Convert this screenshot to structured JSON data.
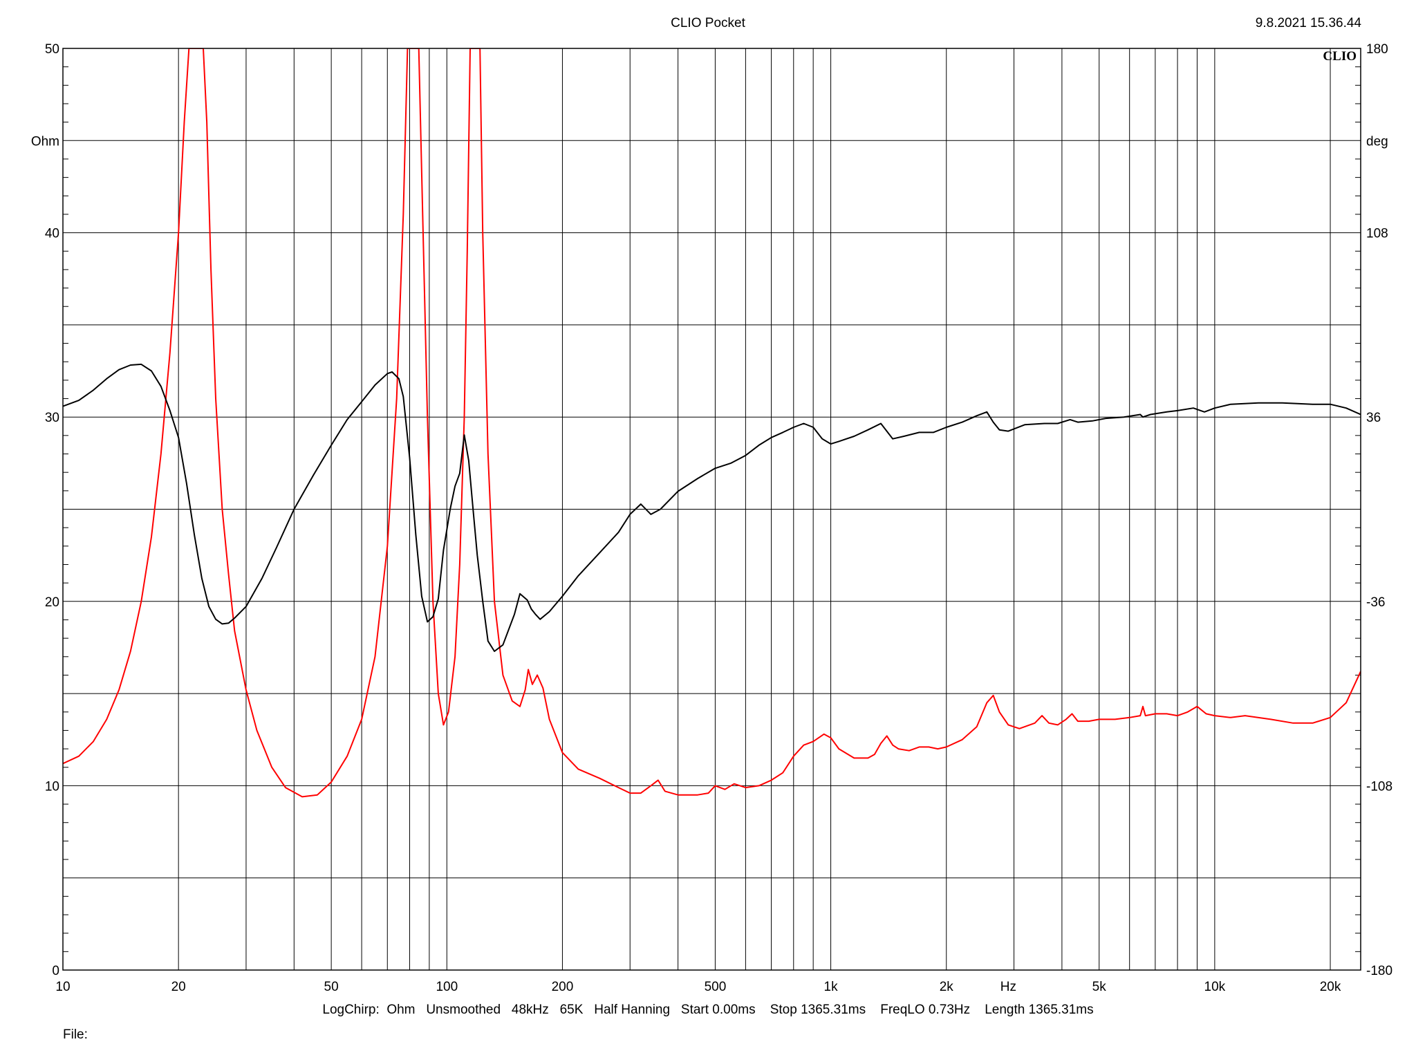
{
  "header": {
    "title": "CLIO Pocket",
    "timestamp": "9.8.2021 15.36.44",
    "brand": "CLIO"
  },
  "footer": {
    "settings": "LogChirp:  Ohm   Unsmoothed   48kHz   65K   Half Hanning   Start 0.00ms    Stop 1365.31ms    FreqLO 0.73Hz    Length 1365.31ms",
    "file_label": "File:"
  },
  "chart_data": {
    "type": "line",
    "title": "CLIO Pocket",
    "x_scale": "log",
    "xlim": [
      10,
      24000
    ],
    "x_tick_labels": [
      {
        "value": 10,
        "label": "10"
      },
      {
        "value": 20,
        "label": "20"
      },
      {
        "value": 50,
        "label": "50"
      },
      {
        "value": 100,
        "label": "100"
      },
      {
        "value": 200,
        "label": "200"
      },
      {
        "value": 500,
        "label": "500"
      },
      {
        "value": 1000,
        "label": "1k"
      },
      {
        "value": 2000,
        "label": "2k"
      },
      {
        "value": 5000,
        "label": "5k"
      },
      {
        "value": 10000,
        "label": "10k"
      },
      {
        "value": 20000,
        "label": "20k"
      }
    ],
    "xlabel": "Hz",
    "y_left": {
      "label": "Ohm",
      "ylim": [
        0,
        50
      ],
      "ticks": [
        0,
        10,
        20,
        30,
        40,
        50
      ]
    },
    "y_right": {
      "label": "deg",
      "ylim": [
        -180,
        180
      ],
      "ticks": [
        -180,
        -108,
        -36,
        36,
        108,
        180
      ]
    },
    "grid": true,
    "series": [
      {
        "color": "#ff0000",
        "axis": "left",
        "points": [
          [
            10,
            11.2
          ],
          [
            11,
            11.6
          ],
          [
            12,
            12.4
          ],
          [
            13,
            13.6
          ],
          [
            14,
            15.2
          ],
          [
            15,
            17.3
          ],
          [
            16,
            20.0
          ],
          [
            17,
            23.5
          ],
          [
            18,
            28.0
          ],
          [
            19,
            33.5
          ],
          [
            20,
            40.0
          ],
          [
            20.7,
            46.0
          ],
          [
            21.3,
            50.0
          ],
          [
            23.2,
            50.0
          ],
          [
            23.7,
            46.0
          ],
          [
            24.3,
            38.0
          ],
          [
            25,
            31.0
          ],
          [
            26,
            25.0
          ],
          [
            27,
            21.5
          ],
          [
            28,
            18.4
          ],
          [
            30,
            15.2
          ],
          [
            32,
            13.0
          ],
          [
            35,
            11.0
          ],
          [
            38,
            9.9
          ],
          [
            42,
            9.4
          ],
          [
            46,
            9.5
          ],
          [
            50,
            10.2
          ],
          [
            55,
            11.6
          ],
          [
            60,
            13.6
          ],
          [
            65,
            17.0
          ],
          [
            70,
            23.0
          ],
          [
            74,
            31.0
          ],
          [
            77,
            41.0
          ],
          [
            79,
            50.0
          ],
          [
            84.5,
            50.0
          ],
          [
            86.5,
            41.0
          ],
          [
            89,
            30.0
          ],
          [
            92,
            20.0
          ],
          [
            95,
            15.0
          ],
          [
            98,
            13.3
          ],
          [
            101,
            14.0
          ],
          [
            105,
            17.0
          ],
          [
            108,
            22.0
          ],
          [
            111,
            30.0
          ],
          [
            113,
            39.0
          ],
          [
            115,
            50.0
          ],
          [
            122,
            50.0
          ],
          [
            124,
            40.0
          ],
          [
            128,
            28.0
          ],
          [
            133,
            20.0
          ],
          [
            140,
            16.0
          ],
          [
            148,
            14.6
          ],
          [
            155,
            14.3
          ],
          [
            160,
            15.2
          ],
          [
            163,
            16.3
          ],
          [
            167,
            15.5
          ],
          [
            172,
            16.0
          ],
          [
            178,
            15.3
          ],
          [
            185,
            13.6
          ],
          [
            200,
            11.8
          ],
          [
            220,
            10.9
          ],
          [
            250,
            10.4
          ],
          [
            280,
            9.9
          ],
          [
            300,
            9.6
          ],
          [
            320,
            9.6
          ],
          [
            340,
            10.0
          ],
          [
            355,
            10.3
          ],
          [
            370,
            9.7
          ],
          [
            400,
            9.5
          ],
          [
            450,
            9.5
          ],
          [
            480,
            9.6
          ],
          [
            500,
            10.0
          ],
          [
            530,
            9.8
          ],
          [
            560,
            10.1
          ],
          [
            600,
            9.9
          ],
          [
            650,
            10.0
          ],
          [
            700,
            10.3
          ],
          [
            750,
            10.7
          ],
          [
            800,
            11.6
          ],
          [
            850,
            12.2
          ],
          [
            900,
            12.4
          ],
          [
            960,
            12.8
          ],
          [
            1000,
            12.6
          ],
          [
            1050,
            12.0
          ],
          [
            1150,
            11.5
          ],
          [
            1250,
            11.5
          ],
          [
            1300,
            11.7
          ],
          [
            1350,
            12.3
          ],
          [
            1400,
            12.7
          ],
          [
            1450,
            12.2
          ],
          [
            1500,
            12.0
          ],
          [
            1600,
            11.9
          ],
          [
            1700,
            12.1
          ],
          [
            1800,
            12.1
          ],
          [
            1900,
            12.0
          ],
          [
            2000,
            12.1
          ],
          [
            2200,
            12.5
          ],
          [
            2400,
            13.2
          ],
          [
            2550,
            14.5
          ],
          [
            2650,
            14.9
          ],
          [
            2750,
            14.0
          ],
          [
            2900,
            13.3
          ],
          [
            3100,
            13.1
          ],
          [
            3400,
            13.4
          ],
          [
            3550,
            13.8
          ],
          [
            3700,
            13.4
          ],
          [
            3900,
            13.3
          ],
          [
            4100,
            13.6
          ],
          [
            4250,
            13.9
          ],
          [
            4400,
            13.5
          ],
          [
            4700,
            13.5
          ],
          [
            5000,
            13.6
          ],
          [
            5500,
            13.6
          ],
          [
            6000,
            13.7
          ],
          [
            6400,
            13.8
          ],
          [
            6500,
            14.3
          ],
          [
            6600,
            13.8
          ],
          [
            7000,
            13.9
          ],
          [
            7500,
            13.9
          ],
          [
            8000,
            13.8
          ],
          [
            8500,
            14.0
          ],
          [
            9000,
            14.3
          ],
          [
            9500,
            13.9
          ],
          [
            10000,
            13.8
          ],
          [
            11000,
            13.7
          ],
          [
            12000,
            13.8
          ],
          [
            14000,
            13.6
          ],
          [
            16000,
            13.4
          ],
          [
            18000,
            13.4
          ],
          [
            20000,
            13.7
          ],
          [
            22000,
            14.5
          ],
          [
            24000,
            16.2
          ]
        ]
      },
      {
        "color": "#000000",
        "axis": "right",
        "points": [
          [
            10,
            40.2
          ],
          [
            11,
            42.5
          ],
          [
            12,
            46.5
          ],
          [
            13,
            51.0
          ],
          [
            14,
            54.5
          ],
          [
            15,
            56.3
          ],
          [
            16,
            56.6
          ],
          [
            17,
            54.0
          ],
          [
            18,
            48.0
          ],
          [
            19,
            38.5
          ],
          [
            20,
            28.0
          ],
          [
            21,
            10.0
          ],
          [
            22,
            -10.0
          ],
          [
            23,
            -27.0
          ],
          [
            24,
            -38.0
          ],
          [
            25,
            -43.0
          ],
          [
            26,
            -44.8
          ],
          [
            27,
            -44.5
          ],
          [
            28,
            -42.5
          ],
          [
            30,
            -38.0
          ],
          [
            33,
            -27.0
          ],
          [
            36,
            -15.0
          ],
          [
            40,
            0.0
          ],
          [
            45,
            13.5
          ],
          [
            50,
            25.0
          ],
          [
            55,
            35.0
          ],
          [
            60,
            42.0
          ],
          [
            65,
            48.5
          ],
          [
            70,
            53.0
          ],
          [
            72,
            53.6
          ],
          [
            75,
            51.0
          ],
          [
            77,
            44.0
          ],
          [
            80,
            20.0
          ],
          [
            83,
            -10.0
          ],
          [
            86,
            -34.0
          ],
          [
            89,
            -44.0
          ],
          [
            92,
            -42.0
          ],
          [
            95,
            -35.0
          ],
          [
            98,
            -16.0
          ],
          [
            100,
            -8.0
          ],
          [
            102,
            0.0
          ],
          [
            105,
            9.0
          ],
          [
            108,
            14.0
          ],
          [
            111,
            29.0
          ],
          [
            114,
            19.0
          ],
          [
            117,
            0.0
          ],
          [
            120,
            -18.0
          ],
          [
            124,
            -36.0
          ],
          [
            128,
            -51.5
          ],
          [
            133,
            -55.5
          ],
          [
            140,
            -53.0
          ],
          [
            150,
            -41.0
          ],
          [
            155,
            -33.0
          ],
          [
            162,
            -35.5
          ],
          [
            166,
            -39.0
          ],
          [
            170,
            -41.0
          ],
          [
            175,
            -43.0
          ],
          [
            185,
            -40.0
          ],
          [
            200,
            -34.0
          ],
          [
            220,
            -26.0
          ],
          [
            250,
            -17.0
          ],
          [
            280,
            -9.0
          ],
          [
            300,
            -2.0
          ],
          [
            320,
            2.0
          ],
          [
            340,
            -2.0
          ],
          [
            360,
            0.0
          ],
          [
            400,
            7.0
          ],
          [
            450,
            12.0
          ],
          [
            500,
            16.0
          ],
          [
            550,
            18.0
          ],
          [
            600,
            21.0
          ],
          [
            650,
            25.0
          ],
          [
            700,
            28.0
          ],
          [
            750,
            30.0
          ],
          [
            800,
            32.0
          ],
          [
            850,
            33.5
          ],
          [
            900,
            32.0
          ],
          [
            950,
            27.5
          ],
          [
            1000,
            25.5
          ],
          [
            1050,
            26.5
          ],
          [
            1150,
            28.5
          ],
          [
            1250,
            31.0
          ],
          [
            1350,
            33.5
          ],
          [
            1450,
            27.5
          ],
          [
            1550,
            28.5
          ],
          [
            1700,
            30.0
          ],
          [
            1850,
            30.0
          ],
          [
            2000,
            32.0
          ],
          [
            2200,
            34.0
          ],
          [
            2400,
            36.5
          ],
          [
            2550,
            38.0
          ],
          [
            2650,
            34.0
          ],
          [
            2750,
            31.0
          ],
          [
            2900,
            30.5
          ],
          [
            3200,
            33.0
          ],
          [
            3600,
            33.5
          ],
          [
            3900,
            33.5
          ],
          [
            4200,
            35.0
          ],
          [
            4400,
            34.0
          ],
          [
            4800,
            34.5
          ],
          [
            5200,
            35.5
          ],
          [
            5800,
            36.0
          ],
          [
            6400,
            37.0
          ],
          [
            6500,
            36.0
          ],
          [
            6800,
            37.0
          ],
          [
            7500,
            38.0
          ],
          [
            8000,
            38.5
          ],
          [
            8800,
            39.5
          ],
          [
            9400,
            38.0
          ],
          [
            10000,
            39.5
          ],
          [
            11000,
            41.0
          ],
          [
            13000,
            41.5
          ],
          [
            15000,
            41.5
          ],
          [
            18000,
            41.0
          ],
          [
            20000,
            41.0
          ],
          [
            22000,
            39.5
          ],
          [
            24000,
            37.0
          ]
        ]
      }
    ]
  }
}
